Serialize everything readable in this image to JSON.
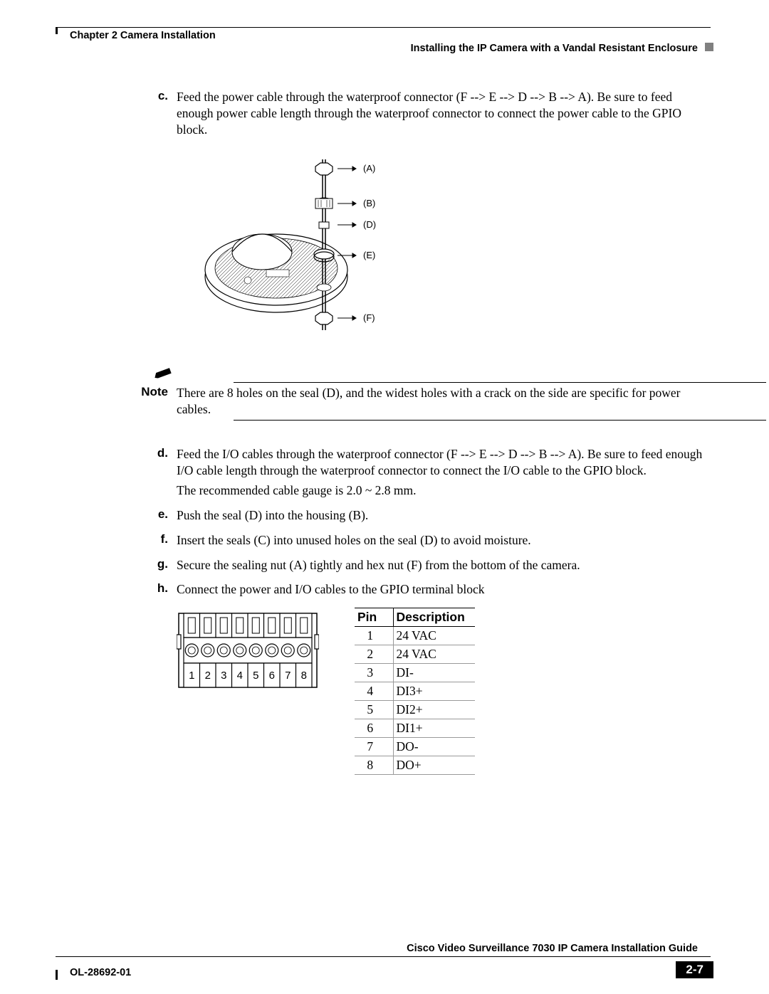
{
  "header": {
    "chapter": "Chapter 2      Camera Installation",
    "section": "Installing the IP Camera with a Vandal Resistant Enclosure"
  },
  "steps": {
    "c": {
      "letter": "c.",
      "text": "Feed the power cable through the waterproof connector (F --> E --> D --> B --> A). Be sure to feed enough power cable length through the waterproof connector to connect the power cable to the GPIO block."
    },
    "d": {
      "letter": "d.",
      "text1": "Feed the I/O cables through the waterproof connector (F --> E --> D --> B --> A). Be sure to feed enough I/O cable length through the waterproof connector to connect the I/O cable to the GPIO block.",
      "text2": "The recommended cable gauge is 2.0 ~ 2.8 mm."
    },
    "e": {
      "letter": "e.",
      "text": "Push the seal (D) into the housing (B)."
    },
    "f": {
      "letter": "f.",
      "text": "Insert the seals (C) into unused holes on the seal (D) to avoid moisture."
    },
    "g": {
      "letter": "g.",
      "text": "Secure the sealing nut (A) tightly and hex nut (F) from the bottom of the camera."
    },
    "h": {
      "letter": "h.",
      "text": "Connect the power and I/O cables to the GPIO terminal block"
    }
  },
  "note": {
    "label": "Note",
    "text": "There are 8 holes on the seal (D), and the widest holes with a crack on the side are specific for power cables."
  },
  "diagram1": {
    "callouts": [
      "(A)",
      "(B)",
      "(D)",
      "(E)",
      "(F)"
    ],
    "callout_font_family": "Arial, Helvetica, sans-serif",
    "callout_fontsize": 13,
    "colors": {
      "stroke": "#000000",
      "fill_light": "#ffffff",
      "hatch": "#000000"
    },
    "line_width": 1.0
  },
  "terminal": {
    "pin_labels": [
      "1",
      "2",
      "3",
      "4",
      "5",
      "6",
      "7",
      "8"
    ],
    "label_fontsize": 15,
    "stroke": "#000000",
    "fill": "#ffffff",
    "line_width": 1.5
  },
  "pin_table": {
    "headers": [
      "Pin",
      "Description"
    ],
    "rows": [
      [
        "1",
        "24 VAC"
      ],
      [
        "2",
        "24 VAC"
      ],
      [
        "3",
        "DI-"
      ],
      [
        "4",
        "DI3+"
      ],
      [
        "5",
        "DI2+"
      ],
      [
        "6",
        "DI1+"
      ],
      [
        "7",
        "DO-"
      ],
      [
        "8",
        "DO+"
      ]
    ],
    "header_font_family": "Arial, Helvetica, sans-serif",
    "header_fontsize": 17.5,
    "body_fontsize": 17.5,
    "border_color_outer": "#000000",
    "border_color_inner": "#999999"
  },
  "footer": {
    "title": "Cisco Video Surveillance 7030 IP Camera Installation Guide",
    "doc": "OL-28692-01",
    "page": "2-7"
  }
}
